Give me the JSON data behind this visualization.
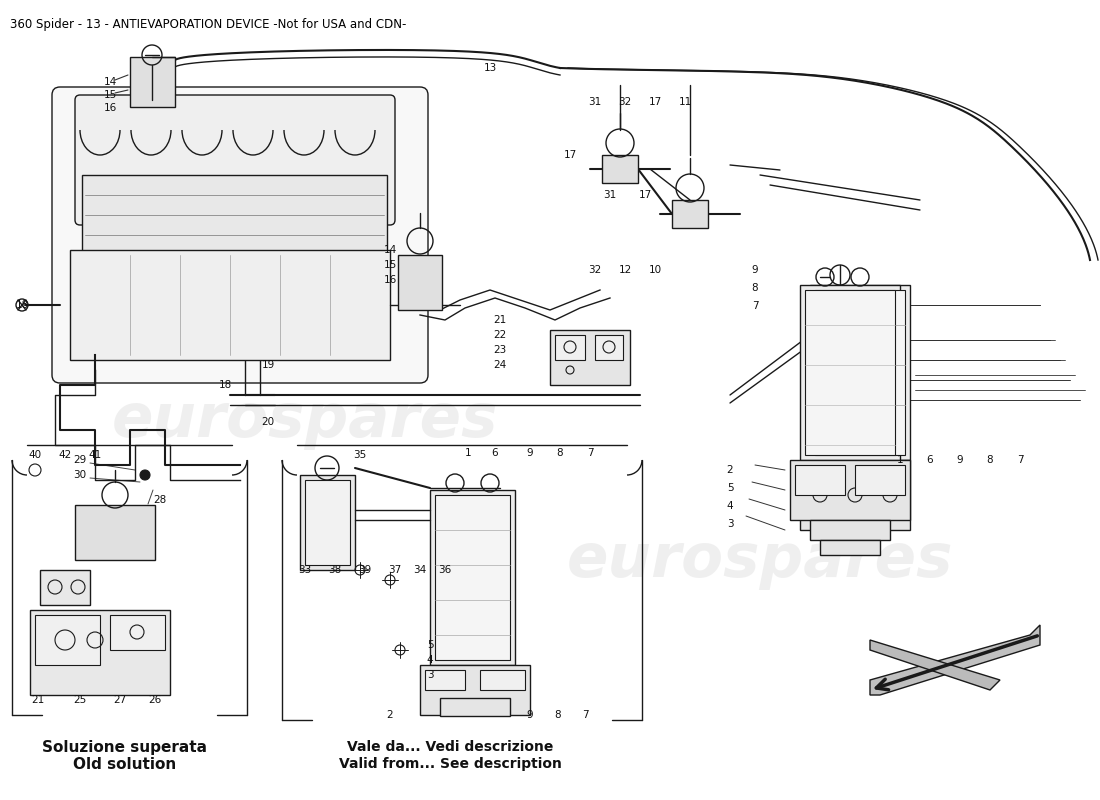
{
  "title": "360 Spider - 13 - ANTIEVAPORATION DEVICE -Not for USA and CDN-",
  "title_fontsize": 8.5,
  "title_color": "#000000",
  "background_color": "#ffffff",
  "watermark_text": "eurospares",
  "watermark_color": "#cccccc",
  "watermark_fontsize": 44,
  "watermark_alpha": 0.3,
  "box1_label_line1": "Soluzione superata",
  "box1_label_line2": "Old solution",
  "box2_label_line1": "Vale da... Vedi descrizione",
  "box2_label_line2": "Valid from... See description",
  "label_fontsize_bold": 11,
  "label_fontsize_small": 7.5
}
